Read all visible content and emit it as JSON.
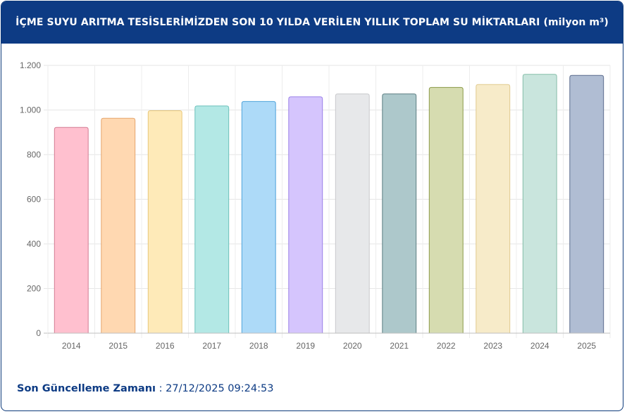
{
  "header": {
    "title": "İÇME SUYU ARITMA TESİSLERİMİZDEN SON 10 YILDA VERİLEN YILLIK TOPLAM SU MİKTARLARI (milyon m³)"
  },
  "footer": {
    "label": "Son Güncelleme Zamanı",
    "separator": " : ",
    "timestamp": "27/12/2025 09:24:53"
  },
  "chart_data": {
    "type": "bar",
    "title": "İÇME SUYU ARITMA TESİSLERİMİZDEN SON 10 YILDA VERİLEN YILLIK TOPLAM SU MİKTARLARI (milyon m³)",
    "xlabel": "",
    "ylabel": "",
    "ylim": [
      0,
      1200
    ],
    "yticks": [
      0,
      200,
      400,
      600,
      800,
      1000,
      1200
    ],
    "ytick_labels": [
      "0",
      "200",
      "400",
      "600",
      "800",
      "1.000",
      "1.200"
    ],
    "grid": true,
    "legend": "none",
    "categories": [
      "2014",
      "2015",
      "2016",
      "2017",
      "2018",
      "2019",
      "2020",
      "2021",
      "2022",
      "2023",
      "2024",
      "2025"
    ],
    "values": [
      922,
      963,
      997,
      1018,
      1038,
      1059,
      1072,
      1072,
      1101,
      1114,
      1160,
      1155
    ],
    "fill_colors": [
      "#ffc0cf",
      "#ffd8b1",
      "#feeab8",
      "#b3e8e5",
      "#addaf8",
      "#d5c5fd",
      "#e7e8ea",
      "#adc8cb",
      "#d6dcb0",
      "#f7ebc9",
      "#c9e5dd",
      "#b0bdd3"
    ],
    "stroke_colors": [
      "#d37c93",
      "#e5a56c",
      "#e8c77a",
      "#6bc1bb",
      "#4fa3da",
      "#9b80e8",
      "#c8c9cc",
      "#5d7f83",
      "#8b9a48",
      "#e0c98e",
      "#86bda9",
      "#5a6b8d"
    ]
  }
}
